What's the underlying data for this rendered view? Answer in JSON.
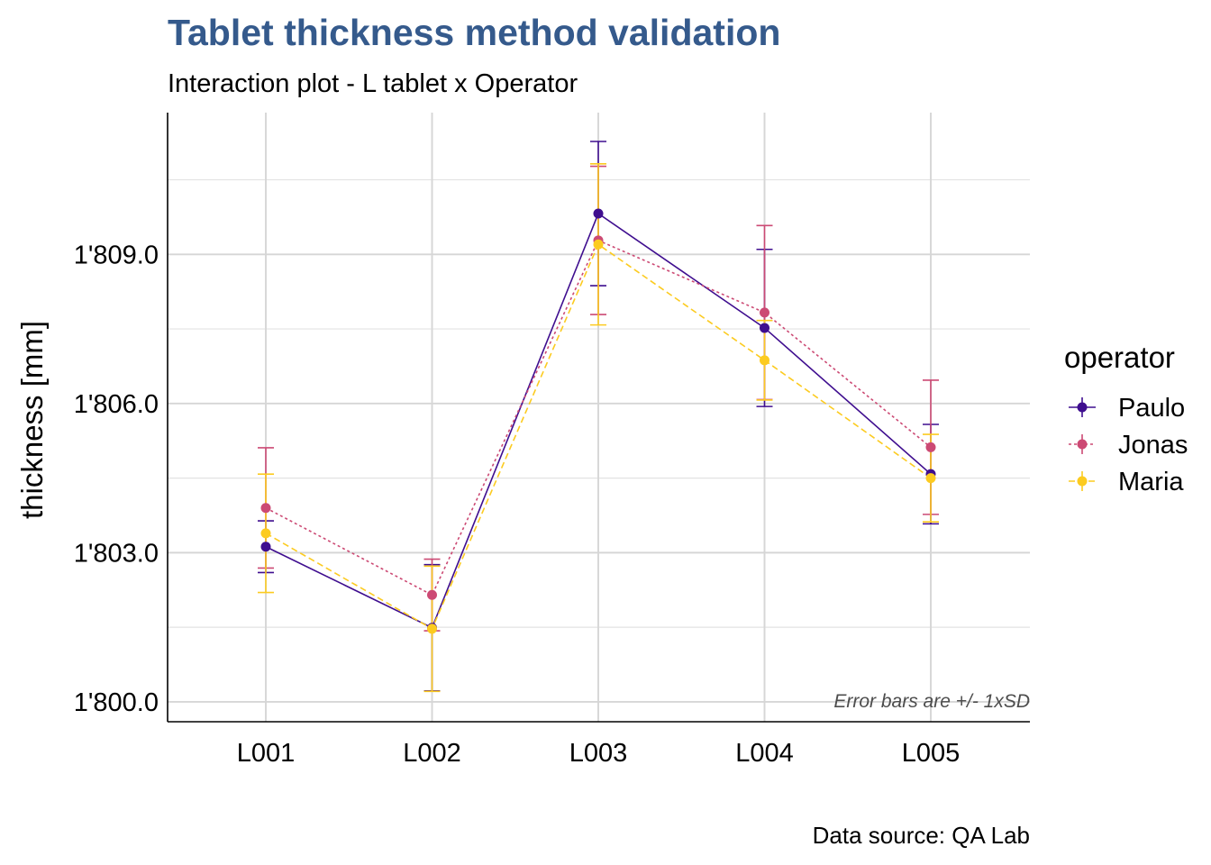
{
  "chart_data": {
    "type": "line",
    "title": "Tablet thickness method validation",
    "subtitle": "Interaction plot - L tablet x Operator",
    "xlabel": "",
    "ylabel": "thickness [mm]",
    "categories": [
      "L001",
      "L002",
      "L003",
      "L004",
      "L005"
    ],
    "ylim": [
      1799.6,
      1811.85
    ],
    "yticks": [
      1800,
      1803,
      1806,
      1809
    ],
    "ytick_labels": [
      "1'800.0",
      "1'803.0",
      "1'806.0",
      "1'809.0"
    ],
    "grid": true,
    "legend_title": "operator",
    "legend_position": "right",
    "annotation": "Error bars are +/- 1xSD",
    "caption": "Data source: QA Lab",
    "series": [
      {
        "name": "Paulo",
        "color": "#3F0E8F",
        "linetype": "solid",
        "values": [
          1803.12,
          1801.49,
          1809.82,
          1807.52,
          1804.58
        ],
        "sd": [
          0.52,
          1.27,
          1.45,
          1.58,
          1.0
        ]
      },
      {
        "name": "Jonas",
        "color": "#CC4A74",
        "linetype": "dotted",
        "values": [
          1803.9,
          1802.15,
          1809.28,
          1807.83,
          1805.12
        ],
        "sd": [
          1.21,
          0.72,
          1.49,
          1.75,
          1.35
        ]
      },
      {
        "name": "Maria",
        "color": "#FCCB20",
        "linetype": "dashed",
        "values": [
          1803.39,
          1801.47,
          1809.2,
          1806.87,
          1804.5
        ],
        "sd": [
          1.19,
          1.26,
          1.62,
          0.8,
          0.88
        ]
      }
    ]
  }
}
